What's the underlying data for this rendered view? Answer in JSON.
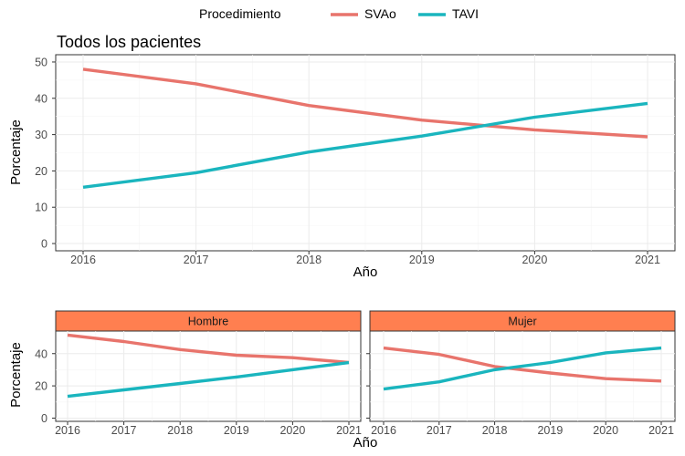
{
  "legend": {
    "title": "Procedimiento",
    "entries": [
      {
        "name": "SVAo",
        "color": "#e8746c"
      },
      {
        "name": "TAVI",
        "color": "#1ab5be"
      }
    ]
  },
  "chart_data": [
    {
      "type": "line",
      "title": "Todos los pacientes",
      "xlabel": "Año",
      "ylabel": "Porcentaje",
      "x": [
        2016,
        2017,
        2018,
        2019,
        2020,
        2021
      ],
      "xticks": [
        "2016",
        "2017",
        "2018",
        "2019",
        "2020",
        "2021"
      ],
      "ylim": [
        -2,
        52
      ],
      "yticks": [
        "0",
        "10",
        "20",
        "30",
        "40",
        "50"
      ],
      "grid": true,
      "legend_position": "top",
      "series": [
        {
          "name": "SVAo",
          "color": "#e8746c",
          "values": [
            48,
            44,
            38,
            34,
            31.3,
            29.4
          ]
        },
        {
          "name": "TAVI",
          "color": "#1ab5be",
          "values": [
            15.5,
            19.5,
            25.2,
            29.6,
            34.8,
            38.6
          ]
        }
      ]
    },
    {
      "type": "line",
      "strip": "Hombre",
      "xlabel": "Año",
      "ylabel": "Porcentaje",
      "x": [
        2016,
        2017,
        2018,
        2019,
        2020,
        2021
      ],
      "xticks": [
        "2016",
        "2017",
        "2018",
        "2019",
        "2020",
        "2021"
      ],
      "ylim": [
        -2,
        54
      ],
      "yticks": [
        "0",
        "20",
        "40"
      ],
      "grid": true,
      "series": [
        {
          "name": "SVAo",
          "color": "#e8746c",
          "values": [
            51.5,
            47.5,
            42.5,
            39,
            37.5,
            34.5
          ]
        },
        {
          "name": "TAVI",
          "color": "#1ab5be",
          "values": [
            13.5,
            17.5,
            21.5,
            25.5,
            30,
            34.5
          ]
        }
      ]
    },
    {
      "type": "line",
      "strip": "Mujer",
      "xlabel": "Año",
      "x": [
        2016,
        2017,
        2018,
        2019,
        2020,
        2021
      ],
      "xticks": [
        "2016",
        "2017",
        "2018",
        "2019",
        "2020",
        "2021"
      ],
      "ylim": [
        -2,
        54
      ],
      "grid": true,
      "series": [
        {
          "name": "SVAo",
          "color": "#e8746c",
          "values": [
            43.5,
            39.5,
            32,
            28,
            24.5,
            23
          ]
        },
        {
          "name": "TAVI",
          "color": "#1ab5be",
          "values": [
            18,
            22.5,
            30,
            34.5,
            40.5,
            43.5
          ]
        }
      ]
    }
  ]
}
